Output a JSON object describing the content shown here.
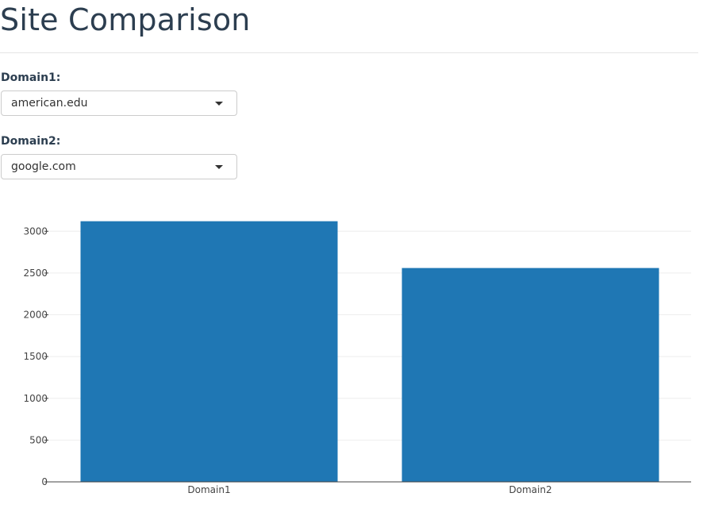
{
  "header": {
    "title": "Site Comparison"
  },
  "form": {
    "domain1": {
      "label": "Domain1:",
      "value": "american.edu"
    },
    "domain2": {
      "label": "Domain2:",
      "value": "google.com"
    }
  },
  "colors": {
    "bar": "#1f77b4",
    "grid": "#eeeeee",
    "axis": "#444444"
  },
  "chart_data": {
    "type": "bar",
    "categories": [
      "Domain1",
      "Domain2"
    ],
    "values": [
      3120,
      2560
    ],
    "yticks": [
      0,
      500,
      1000,
      1500,
      2000,
      2500,
      3000
    ],
    "ylim": [
      0,
      3250
    ],
    "grid": true,
    "legend": "none"
  }
}
